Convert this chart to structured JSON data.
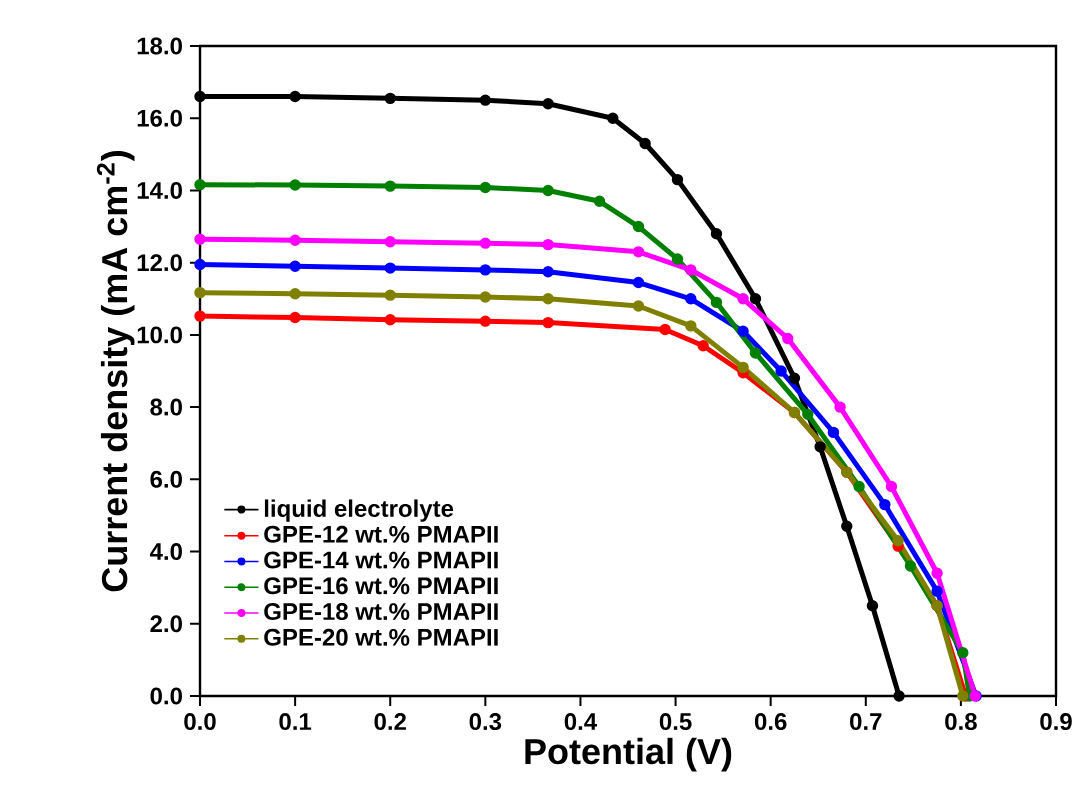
{
  "chart_data": {
    "type": "line",
    "xlabel": "Potential (V)",
    "ylabel": "Current density (mA cm$^{-2}$)",
    "xlim": [
      0,
      0.9
    ],
    "ylim": [
      0,
      18
    ],
    "xticks": [
      {
        "value": 0,
        "label": "0.0"
      },
      0.1,
      0.2,
      0.3,
      0.4,
      0.5,
      0.6,
      0.7,
      0.8,
      0.9
    ],
    "yticks": [
      {
        "value": 0,
        "label": "0.0"
      },
      {
        "value": 2,
        "label": "2.0"
      },
      {
        "value": 4,
        "label": "4.0"
      },
      {
        "value": 6,
        "label": "6.0"
      },
      {
        "value": 8,
        "label": "8.0"
      },
      {
        "value": 10,
        "label": "10.0"
      },
      {
        "value": 12,
        "label": "12.0"
      },
      {
        "value": 14,
        "label": "14.0"
      },
      {
        "value": 16,
        "label": "16.0"
      },
      {
        "value": 18,
        "label": "18.0"
      }
    ],
    "marker": "circle",
    "line_style": "solid",
    "legend": "bottom left",
    "grid": false,
    "series": [
      {
        "name": "liquid electrolyte",
        "color": "#000000",
        "x": [
          0,
          0.1,
          0.2,
          0.3,
          0.366,
          0.434,
          0.468,
          0.502,
          0.543,
          0.584,
          0.625,
          0.652,
          0.68,
          0.707,
          0.735
        ],
        "values": [
          16.6,
          16.6,
          16.55,
          16.5,
          16.4,
          16.0,
          15.3,
          14.3,
          12.8,
          11.0,
          8.8,
          6.9,
          4.7,
          2.5,
          0
        ]
      },
      {
        "name": "GPE-12 wt.% PMAPII",
        "color": "#ff0000",
        "x": [
          0,
          0.1,
          0.2,
          0.3,
          0.366,
          0.489,
          0.529,
          0.571,
          0.625,
          0.68,
          0.734,
          0.775,
          0.805
        ],
        "values": [
          10.52,
          10.48,
          10.42,
          10.38,
          10.34,
          10.15,
          9.7,
          8.95,
          7.85,
          6.2,
          4.15,
          2.5,
          0
        ]
      },
      {
        "name": "GPE-14 wt.% PMAPII",
        "color": "#0000ff",
        "x": [
          0,
          0.1,
          0.2,
          0.3,
          0.366,
          0.461,
          0.516,
          0.571,
          0.611,
          0.666,
          0.72,
          0.775,
          0.816
        ],
        "values": [
          11.95,
          11.9,
          11.85,
          11.8,
          11.75,
          11.45,
          11.0,
          10.1,
          9.0,
          7.3,
          5.3,
          2.9,
          0
        ]
      },
      {
        "name": "GPE-16 wt.% PMAPII",
        "color": "#008000",
        "x": [
          0,
          0.1,
          0.2,
          0.3,
          0.366,
          0.42,
          0.461,
          0.502,
          0.543,
          0.584,
          0.639,
          0.693,
          0.747,
          0.802,
          0.809
        ],
        "values": [
          14.16,
          14.15,
          14.12,
          14.08,
          14.0,
          13.7,
          13.0,
          12.1,
          10.9,
          9.5,
          7.8,
          5.8,
          3.6,
          1.2,
          0
        ]
      },
      {
        "name": "GPE-18 wt.% PMAPII",
        "color": "#ff00ff",
        "x": [
          0,
          0.1,
          0.2,
          0.3,
          0.366,
          0.461,
          0.516,
          0.571,
          0.618,
          0.673,
          0.727,
          0.775,
          0.815
        ],
        "values": [
          12.65,
          12.62,
          12.58,
          12.54,
          12.5,
          12.3,
          11.8,
          11.0,
          9.9,
          8.0,
          5.8,
          3.4,
          0
        ]
      },
      {
        "name": "GPE-20 wt.% PMAPII",
        "color": "#808000",
        "x": [
          0,
          0.1,
          0.2,
          0.3,
          0.366,
          0.461,
          0.516,
          0.571,
          0.625,
          0.68,
          0.734,
          0.775,
          0.802
        ],
        "values": [
          11.17,
          11.14,
          11.1,
          11.05,
          11.0,
          10.8,
          10.25,
          9.1,
          7.85,
          6.2,
          4.3,
          2.5,
          0
        ]
      }
    ]
  }
}
